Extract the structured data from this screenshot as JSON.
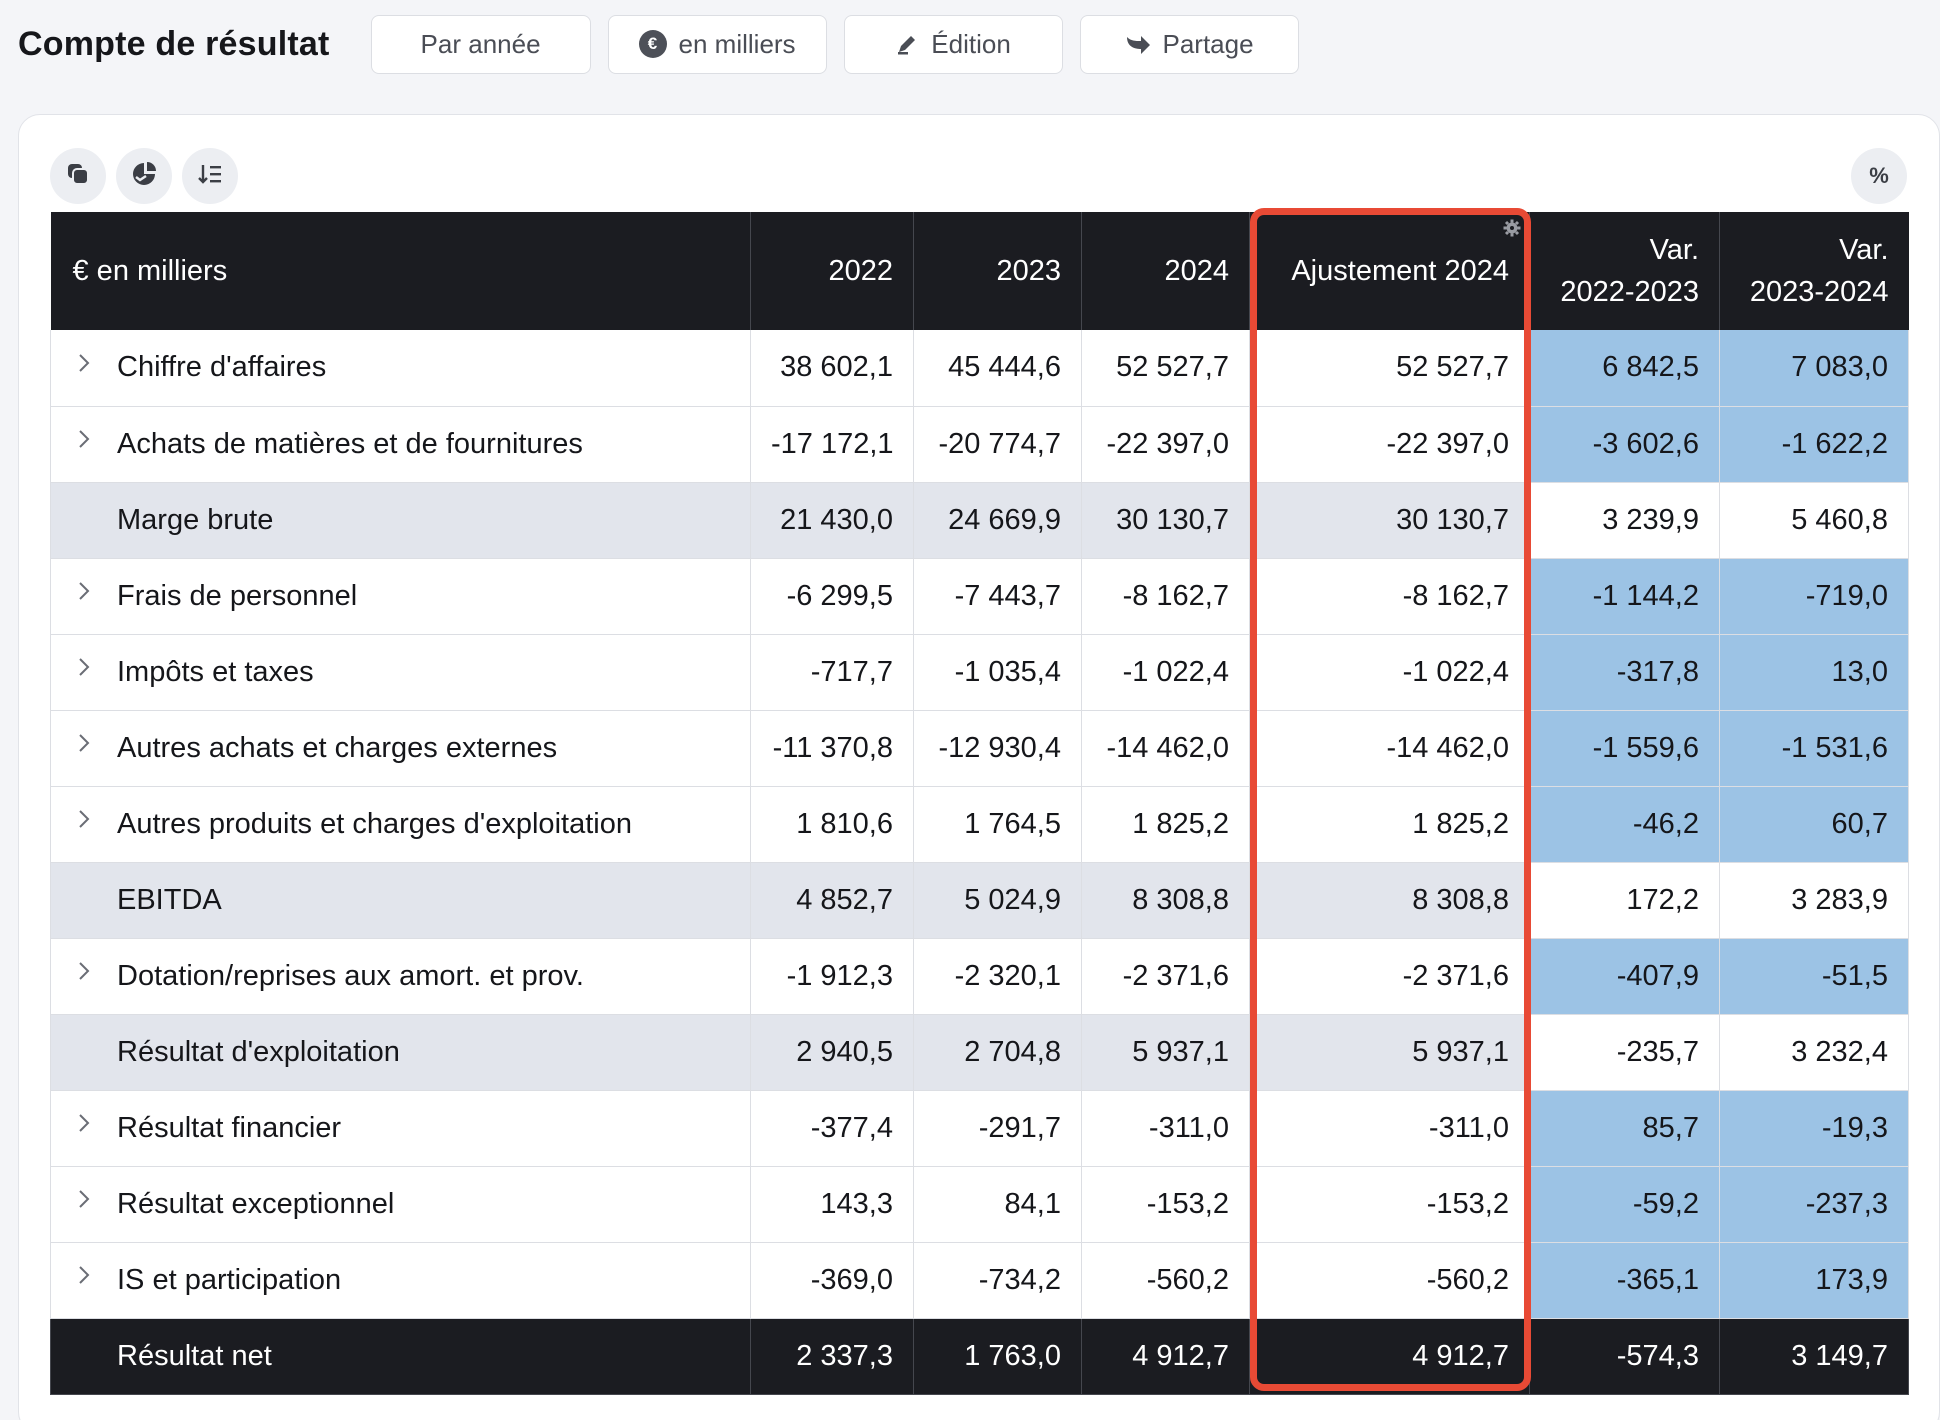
{
  "header": {
    "title": "Compte de résultat",
    "buttons": {
      "period": "Par année",
      "unit": "en milliers",
      "edit": "Édition",
      "share": "Partage"
    }
  },
  "toolbar": {
    "percent_label": "%"
  },
  "table": {
    "columns": [
      "€ en milliers",
      "2022",
      "2023",
      "2024",
      "Ajustement 2024",
      "Var.\n2022-2023",
      "Var.\n2023-2024"
    ],
    "col_var1_line1": "Var.",
    "col_var1_line2": "2022-2023",
    "col_var2_line1": "Var.",
    "col_var2_line2": "2023-2024",
    "rows": [
      {
        "label": "Chiffre d'affaires",
        "expandable": true,
        "type": "detail",
        "values": [
          "38 602,1",
          "45 444,6",
          "52 527,7",
          "52 527,7",
          "6 842,5",
          "7 083,0"
        ]
      },
      {
        "label": "Achats de matières et de fournitures",
        "expandable": true,
        "type": "detail",
        "values": [
          "-17 172,1",
          "-20 774,7",
          "-22 397,0",
          "-22 397,0",
          "-3 602,6",
          "-1 622,2"
        ]
      },
      {
        "label": "Marge brute",
        "expandable": false,
        "type": "sub",
        "values": [
          "21 430,0",
          "24 669,9",
          "30 130,7",
          "30 130,7",
          "3 239,9",
          "5 460,8"
        ]
      },
      {
        "label": "Frais de personnel",
        "expandable": true,
        "type": "detail",
        "values": [
          "-6 299,5",
          "-7 443,7",
          "-8 162,7",
          "-8 162,7",
          "-1 144,2",
          "-719,0"
        ]
      },
      {
        "label": "Impôts et taxes",
        "expandable": true,
        "type": "detail",
        "values": [
          "-717,7",
          "-1 035,4",
          "-1 022,4",
          "-1 022,4",
          "-317,8",
          "13,0"
        ]
      },
      {
        "label": "Autres achats et charges externes",
        "expandable": true,
        "type": "detail",
        "values": [
          "-11 370,8",
          "-12 930,4",
          "-14 462,0",
          "-14 462,0",
          "-1 559,6",
          "-1 531,6"
        ]
      },
      {
        "label": "Autres produits et charges d'exploitation",
        "expandable": true,
        "type": "detail",
        "values": [
          "1 810,6",
          "1 764,5",
          "1 825,2",
          "1 825,2",
          "-46,2",
          "60,7"
        ]
      },
      {
        "label": "EBITDA",
        "expandable": false,
        "type": "sub",
        "values": [
          "4 852,7",
          "5 024,9",
          "8 308,8",
          "8 308,8",
          "172,2",
          "3 283,9"
        ]
      },
      {
        "label": "Dotation/reprises aux amort. et prov.",
        "expandable": true,
        "type": "detail",
        "values": [
          "-1 912,3",
          "-2 320,1",
          "-2 371,6",
          "-2 371,6",
          "-407,9",
          "-51,5"
        ]
      },
      {
        "label": "Résultat d'exploitation",
        "expandable": false,
        "type": "sub",
        "values": [
          "2 940,5",
          "2 704,8",
          "5 937,1",
          "5 937,1",
          "-235,7",
          "3 232,4"
        ]
      },
      {
        "label": "Résultat financier",
        "expandable": true,
        "type": "detail",
        "values": [
          "-377,4",
          "-291,7",
          "-311,0",
          "-311,0",
          "85,7",
          "-19,3"
        ]
      },
      {
        "label": "Résultat exceptionnel",
        "expandable": true,
        "type": "detail",
        "values": [
          "143,3",
          "84,1",
          "-153,2",
          "-153,2",
          "-59,2",
          "-237,3"
        ]
      },
      {
        "label": "IS et participation",
        "expandable": true,
        "type": "detail",
        "values": [
          "-369,0",
          "-734,2",
          "-560,2",
          "-560,2",
          "-365,1",
          "173,9"
        ]
      },
      {
        "label": "Résultat net",
        "expandable": false,
        "type": "total",
        "values": [
          "2 337,3",
          "1 763,0",
          "4 912,7",
          "4 912,7",
          "-574,3",
          "3 149,7"
        ]
      }
    ]
  },
  "colors": {
    "header_bg": "#1b1c21",
    "variance_cell": "#9cc3e5",
    "subtotal_row": "#e2e5ec",
    "highlight_frame": "#e84a35"
  },
  "icons": [
    "euro-icon",
    "edit-pen-icon",
    "share-arrow-icon",
    "copy-icon",
    "chart-download-icon",
    "sort-icon",
    "chevron-right-icon",
    "gear-icon"
  ]
}
